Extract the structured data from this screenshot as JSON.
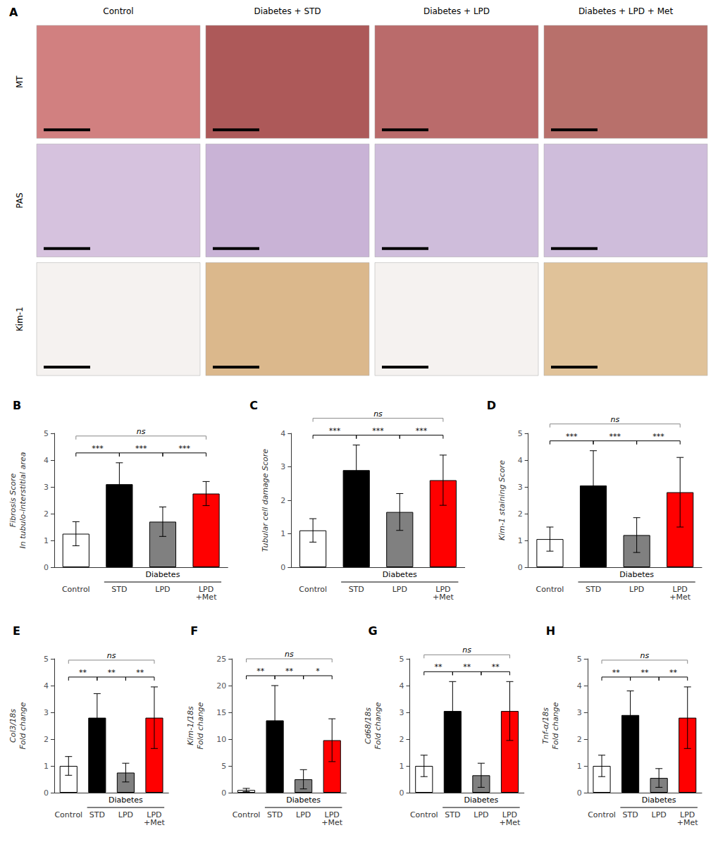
{
  "chart_data": [
    {
      "type": "image_grid",
      "title": "A",
      "categories": [
        "Control",
        "Diabetes + STD",
        "Diabetes + LPD",
        "Diabetes + LPD + Met"
      ],
      "series": [
        {
          "name": "MT",
          "colors": [
            "#d18080",
            "#ad5959",
            "#ba6b6b",
            "#b8706b"
          ]
        },
        {
          "name": "PAS",
          "colors": [
            "#d6c2de",
            "#c9b3d6",
            "#cfbddb",
            "#cfbddb"
          ]
        },
        {
          "name": "Kim-1",
          "colors": [
            "#f5f2f0",
            "#dbb88c",
            "#f5f2f0",
            "#e0c299"
          ]
        }
      ]
    },
    {
      "type": "bar",
      "title": "B",
      "categories": [
        "Control",
        "STD",
        "LPD",
        "LPD\n+Met"
      ],
      "values": [
        1.25,
        3.1,
        1.7,
        2.75
      ],
      "errors": [
        0.45,
        0.8,
        0.55,
        0.45
      ],
      "colors": [
        "white",
        "black",
        "gray",
        "red"
      ],
      "ylabel": "Fibrosis Score\nIn tubulo-interstitial area",
      "ylim": [
        0,
        5
      ],
      "yticks": [
        0,
        1,
        2,
        3,
        4,
        5
      ],
      "grid": false,
      "annotations": [
        {
          "text": "Diabetes",
          "categories": [
            "STD",
            "LPD",
            "LPD\n+Met"
          ]
        },
        {
          "text": "***",
          "from": "Control",
          "to": "STD"
        },
        {
          "text": "***",
          "from": "STD",
          "to": "LPD"
        },
        {
          "text": "***",
          "from": "LPD",
          "to": "LPD\n+Met"
        },
        {
          "text": "ns",
          "from": "Control",
          "to": "LPD\n+Met"
        }
      ]
    },
    {
      "type": "bar",
      "title": "C",
      "categories": [
        "Control",
        "STD",
        "LPD",
        "LPD\n+Met"
      ],
      "values": [
        1.1,
        2.9,
        1.65,
        2.6
      ],
      "errors": [
        0.35,
        0.75,
        0.55,
        0.75
      ],
      "colors": [
        "white",
        "black",
        "gray",
        "red"
      ],
      "ylabel": "Tubular cell damage Score",
      "ylim": [
        0,
        4
      ],
      "yticks": [
        0,
        1,
        2,
        3,
        4
      ],
      "grid": false,
      "annotations": [
        {
          "text": "Diabetes",
          "categories": [
            "STD",
            "LPD",
            "LPD\n+Met"
          ]
        },
        {
          "text": "***",
          "from": "Control",
          "to": "STD"
        },
        {
          "text": "***",
          "from": "STD",
          "to": "LPD"
        },
        {
          "text": "***",
          "from": "LPD",
          "to": "LPD\n+Met"
        },
        {
          "text": "ns",
          "from": "Control",
          "to": "LPD\n+Met"
        }
      ]
    },
    {
      "type": "bar",
      "title": "D",
      "categories": [
        "Control",
        "STD",
        "LPD",
        "LPD\n+Met"
      ],
      "values": [
        1.05,
        3.05,
        1.2,
        2.8
      ],
      "errors": [
        0.45,
        1.3,
        0.65,
        1.3
      ],
      "colors": [
        "white",
        "black",
        "gray",
        "red"
      ],
      "ylabel": "Kim-1 staining Score",
      "ylim": [
        0,
        5
      ],
      "yticks": [
        0,
        1,
        2,
        3,
        4,
        5
      ],
      "grid": false,
      "annotations": [
        {
          "text": "Diabetes",
          "categories": [
            "STD",
            "LPD",
            "LPD\n+Met"
          ]
        },
        {
          "text": "***",
          "from": "Control",
          "to": "STD"
        },
        {
          "text": "***",
          "from": "STD",
          "to": "LPD"
        },
        {
          "text": "***",
          "from": "LPD",
          "to": "LPD\n+Met"
        },
        {
          "text": "ns",
          "from": "Control",
          "to": "LPD\n+Met"
        }
      ]
    },
    {
      "type": "bar",
      "title": "E",
      "categories": [
        "Control",
        "STD",
        "LPD",
        "LPD\n+Met"
      ],
      "values": [
        1.0,
        2.8,
        0.75,
        2.8
      ],
      "errors": [
        0.35,
        0.9,
        0.35,
        1.15
      ],
      "colors": [
        "white",
        "black",
        "gray",
        "red"
      ],
      "ylabel": "Col3/18s\nFold change",
      "ylim": [
        0,
        5
      ],
      "yticks": [
        0,
        1,
        2,
        3,
        4,
        5
      ],
      "grid": false,
      "annotations": [
        {
          "text": "Diabetes",
          "categories": [
            "STD",
            "LPD",
            "LPD\n+Met"
          ]
        },
        {
          "text": "**",
          "from": "Control",
          "to": "STD"
        },
        {
          "text": "**",
          "from": "STD",
          "to": "LPD"
        },
        {
          "text": "**",
          "from": "LPD",
          "to": "LPD\n+Met"
        },
        {
          "text": "ns",
          "from": "Control",
          "to": "LPD\n+Met"
        }
      ]
    },
    {
      "type": "bar",
      "title": "F",
      "categories": [
        "Control",
        "STD",
        "LPD",
        "LPD\n+Met"
      ],
      "values": [
        0.5,
        13.5,
        2.5,
        9.8
      ],
      "errors": [
        0.3,
        6.5,
        1.8,
        4.0
      ],
      "colors": [
        "white",
        "black",
        "gray",
        "red"
      ],
      "ylabel": "Kim-1/18s\nFold change",
      "ylim": [
        0,
        25
      ],
      "yticks": [
        0,
        5,
        10,
        15,
        20,
        25
      ],
      "grid": false,
      "annotations": [
        {
          "text": "Diabetes",
          "categories": [
            "STD",
            "LPD",
            "LPD\n+Met"
          ]
        },
        {
          "text": "**",
          "from": "Control",
          "to": "STD"
        },
        {
          "text": "**",
          "from": "STD",
          "to": "LPD"
        },
        {
          "text": "*",
          "from": "LPD",
          "to": "LPD\n+Met"
        },
        {
          "text": "ns",
          "from": "Control",
          "to": "LPD\n+Met"
        }
      ]
    },
    {
      "type": "bar",
      "title": "G",
      "categories": [
        "Control",
        "STD",
        "LPD",
        "LPD\n+Met"
      ],
      "values": [
        1.0,
        3.05,
        0.65,
        3.05
      ],
      "errors": [
        0.4,
        1.1,
        0.45,
        1.1
      ],
      "colors": [
        "white",
        "black",
        "gray",
        "red"
      ],
      "ylabel": "Cd68/18s\nFold change",
      "ylim": [
        0,
        5
      ],
      "yticks": [
        0,
        1,
        2,
        3,
        4,
        5
      ],
      "grid": false,
      "annotations": [
        {
          "text": "Diabetes",
          "categories": [
            "STD",
            "LPD",
            "LPD\n+Met"
          ]
        },
        {
          "text": "**",
          "from": "Control",
          "to": "STD"
        },
        {
          "text": "**",
          "from": "STD",
          "to": "LPD"
        },
        {
          "text": "**",
          "from": "LPD",
          "to": "LPD\n+Met"
        },
        {
          "text": "ns",
          "from": "Control",
          "to": "LPD\n+Met"
        }
      ]
    },
    {
      "type": "bar",
      "title": "H",
      "categories": [
        "Control",
        "STD",
        "LPD",
        "LPD\n+Met"
      ],
      "values": [
        1.0,
        2.9,
        0.55,
        2.8
      ],
      "errors": [
        0.4,
        0.9,
        0.35,
        1.15
      ],
      "colors": [
        "white",
        "black",
        "gray",
        "red"
      ],
      "ylabel": "Tnf-α/18s\nFold change",
      "ylim": [
        0,
        5
      ],
      "yticks": [
        0,
        1,
        2,
        3,
        4,
        5
      ],
      "grid": false,
      "annotations": [
        {
          "text": "Diabetes",
          "categories": [
            "STD",
            "LPD",
            "LPD\n+Met"
          ]
        },
        {
          "text": "**",
          "from": "Control",
          "to": "STD"
        },
        {
          "text": "**",
          "from": "STD",
          "to": "LPD"
        },
        {
          "text": "**",
          "from": "LPD",
          "to": "LPD\n+Met"
        },
        {
          "text": "ns",
          "from": "Control",
          "to": "LPD\n+Met"
        }
      ]
    }
  ]
}
